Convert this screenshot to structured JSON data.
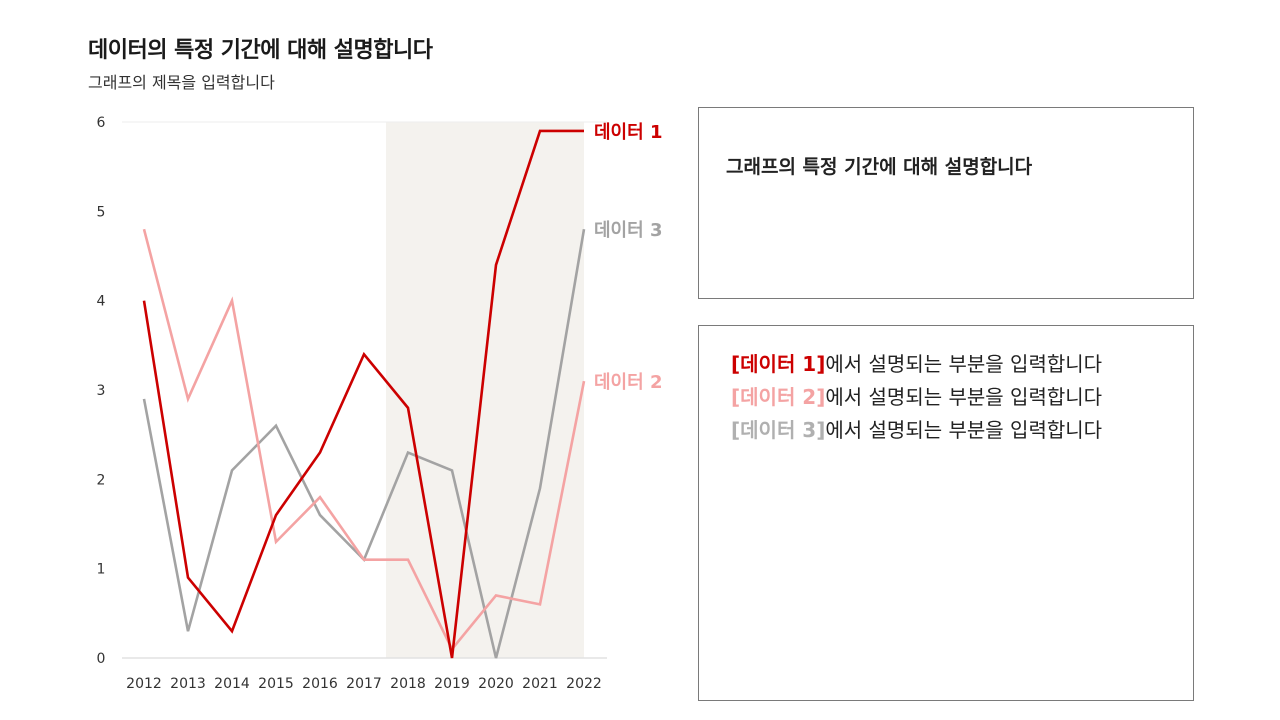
{
  "header": {
    "title": "데이터의 특정 기간에 대해 설명합니다",
    "subtitle": "그래프의 제목을 입력합니다"
  },
  "chart_data": {
    "type": "line",
    "title": "데이터의 특정 기간에 대해 설명합니다",
    "subtitle": "그래프의 제목을 입력합니다",
    "categories": [
      "2012",
      "2013",
      "2014",
      "2015",
      "2016",
      "2017",
      "2018",
      "2019",
      "2020",
      "2021",
      "2022"
    ],
    "ylim": [
      0,
      6
    ],
    "yticks": [
      0,
      1,
      2,
      3,
      4,
      5,
      6
    ],
    "grid": false,
    "highlight_range": [
      "2018",
      "2022"
    ],
    "highlight_color": "#f4f2ee",
    "series": [
      {
        "name": "데이터 1",
        "color": "#cc0000",
        "values": [
          4.0,
          0.9,
          0.3,
          1.6,
          2.3,
          3.4,
          2.8,
          0.0,
          4.4,
          5.9,
          5.9
        ]
      },
      {
        "name": "데이터 2",
        "color": "#f4a3a3",
        "values": [
          4.8,
          2.9,
          4.0,
          1.3,
          1.8,
          1.1,
          1.1,
          0.1,
          0.7,
          0.6,
          3.1
        ]
      },
      {
        "name": "데이터 3",
        "color": "#a3a3a3",
        "values": [
          2.9,
          0.3,
          2.1,
          2.6,
          1.6,
          1.1,
          2.3,
          2.1,
          0.0,
          1.9,
          4.8
        ]
      }
    ]
  },
  "panels": {
    "period_description": "그래프의 특정 기간에 대해 설명합니다",
    "series_descriptions": [
      {
        "tag": "[데이터 1]",
        "text": "에서 설명되는 부분을 입력합니다",
        "color": "#cc0000"
      },
      {
        "tag": "[데이터 2]",
        "text": "에서 설명되는 부분을 입력합니다",
        "color": "#f4a3a3"
      },
      {
        "tag": "[데이터 3]",
        "text": "에서 설명되는 부분을 입력합니다",
        "color": "#b0b0b0"
      }
    ]
  }
}
